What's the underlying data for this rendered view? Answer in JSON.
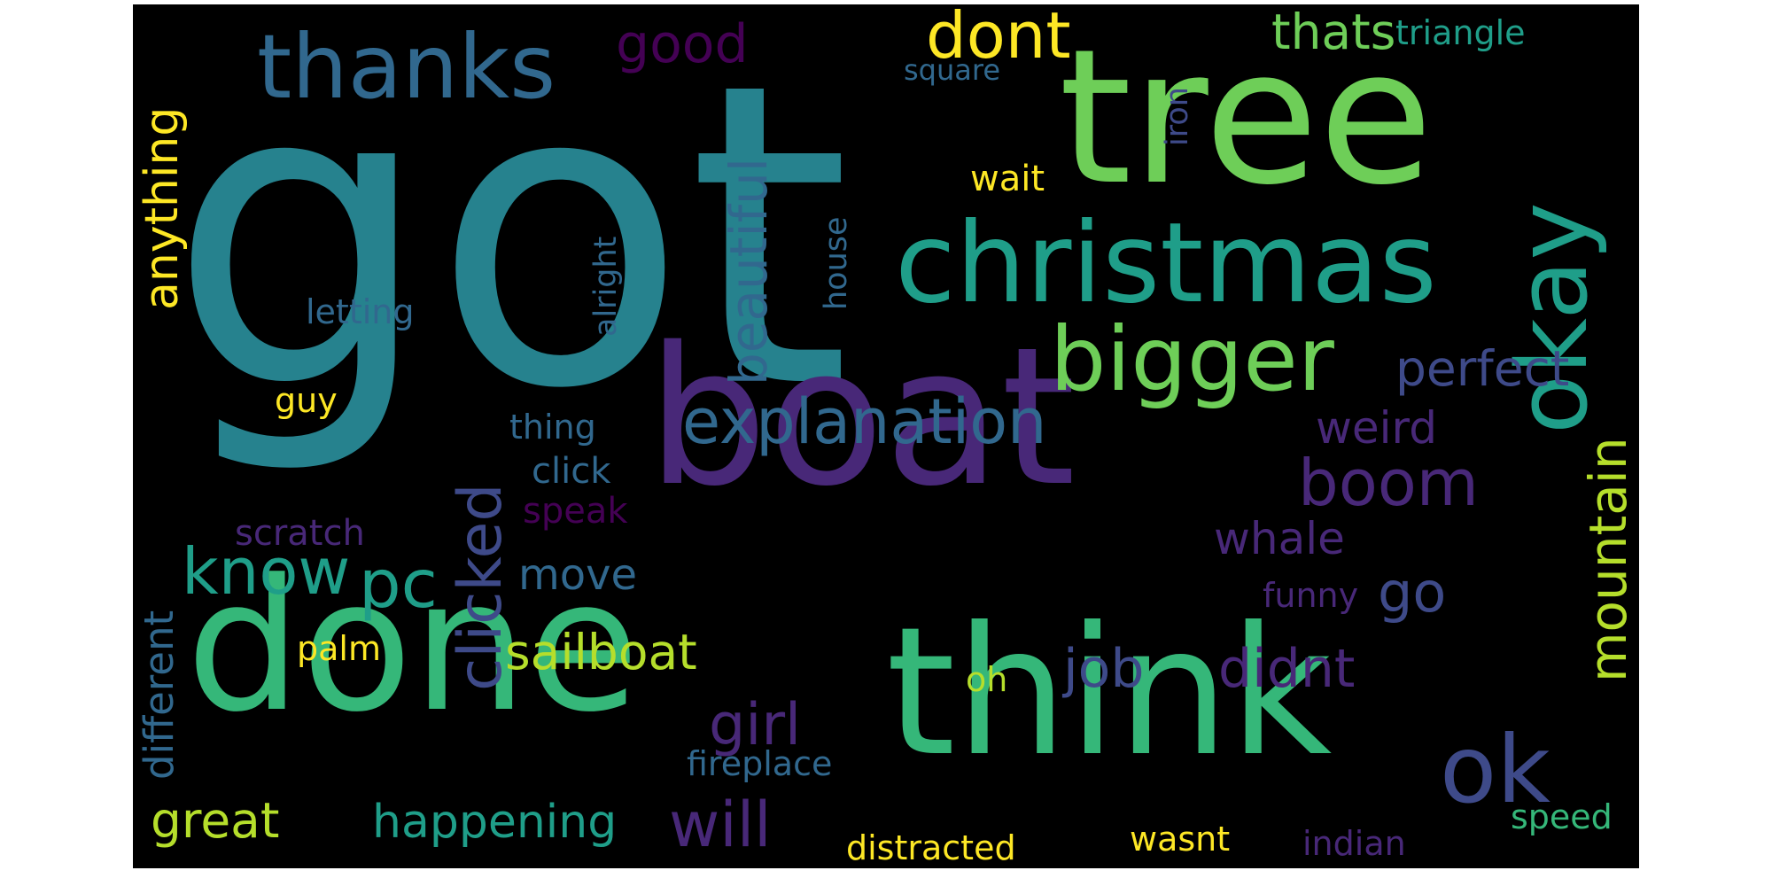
{
  "background": "#000000",
  "palette": {
    "dark_purple": "#440154",
    "indigo": "#482878",
    "blue": "#3e4a89",
    "steel_blue": "#31688e",
    "teal": "#26828e",
    "green_teal": "#1f9e89",
    "green": "#35b779",
    "lime": "#6ece58",
    "yellow_green": "#b5de2b",
    "yellow": "#fde725"
  },
  "words": [
    {
      "text": "got",
      "color": "teal"
    },
    {
      "text": "tree",
      "color": "lime"
    },
    {
      "text": "boat",
      "color": "indigo"
    },
    {
      "text": "think",
      "color": "green"
    },
    {
      "text": "done",
      "color": "green"
    },
    {
      "text": "christmas",
      "color": "green_teal"
    },
    {
      "text": "thanks",
      "color": "steel_blue"
    },
    {
      "text": "bigger",
      "color": "lime"
    },
    {
      "text": "okay",
      "color": "green_teal"
    },
    {
      "text": "ok",
      "color": "blue"
    },
    {
      "text": "explanation",
      "color": "steel_blue"
    },
    {
      "text": "dont",
      "color": "yellow"
    },
    {
      "text": "pc",
      "color": "green_teal"
    },
    {
      "text": "boom",
      "color": "indigo"
    },
    {
      "text": "know",
      "color": "green_teal"
    },
    {
      "text": "clicked",
      "color": "blue"
    },
    {
      "text": "job",
      "color": "blue"
    },
    {
      "text": "go",
      "color": "blue"
    },
    {
      "text": "didnt",
      "color": "indigo"
    },
    {
      "text": "girl",
      "color": "indigo"
    },
    {
      "text": "will",
      "color": "indigo"
    },
    {
      "text": "beautiful",
      "color": "steel_blue"
    },
    {
      "text": "mountain",
      "color": "yellow_green"
    },
    {
      "text": "anything",
      "color": "yellow"
    },
    {
      "text": "happening",
      "color": "green_teal"
    },
    {
      "text": "good",
      "color": "dark_purple"
    },
    {
      "text": "perfect",
      "color": "blue"
    },
    {
      "text": "sailboat",
      "color": "yellow_green"
    },
    {
      "text": "thats",
      "color": "lime"
    },
    {
      "text": "great",
      "color": "yellow_green"
    },
    {
      "text": "weird",
      "color": "indigo"
    },
    {
      "text": "whale",
      "color": "indigo"
    },
    {
      "text": "move",
      "color": "steel_blue"
    },
    {
      "text": "different",
      "color": "steel_blue"
    },
    {
      "text": "triangle",
      "color": "green_teal"
    },
    {
      "text": "fireplace",
      "color": "steel_blue"
    },
    {
      "text": "distracted",
      "color": "yellow"
    },
    {
      "text": "alright",
      "color": "steel_blue"
    },
    {
      "text": "house",
      "color": "steel_blue"
    },
    {
      "text": "letting",
      "color": "steel_blue"
    },
    {
      "text": "thing",
      "color": "steel_blue"
    },
    {
      "text": "click",
      "color": "steel_blue"
    },
    {
      "text": "scratch",
      "color": "indigo"
    },
    {
      "text": "speak",
      "color": "dark_purple"
    },
    {
      "text": "wait",
      "color": "yellow"
    },
    {
      "text": "square",
      "color": "steel_blue"
    },
    {
      "text": "iron",
      "color": "blue"
    },
    {
      "text": "guy",
      "color": "yellow"
    },
    {
      "text": "palm",
      "color": "yellow"
    },
    {
      "text": "oh",
      "color": "yellow_green"
    },
    {
      "text": "funny",
      "color": "indigo"
    },
    {
      "text": "speed",
      "color": "green"
    },
    {
      "text": "wasnt",
      "color": "yellow"
    },
    {
      "text": "indian",
      "color": "indigo"
    }
  ]
}
